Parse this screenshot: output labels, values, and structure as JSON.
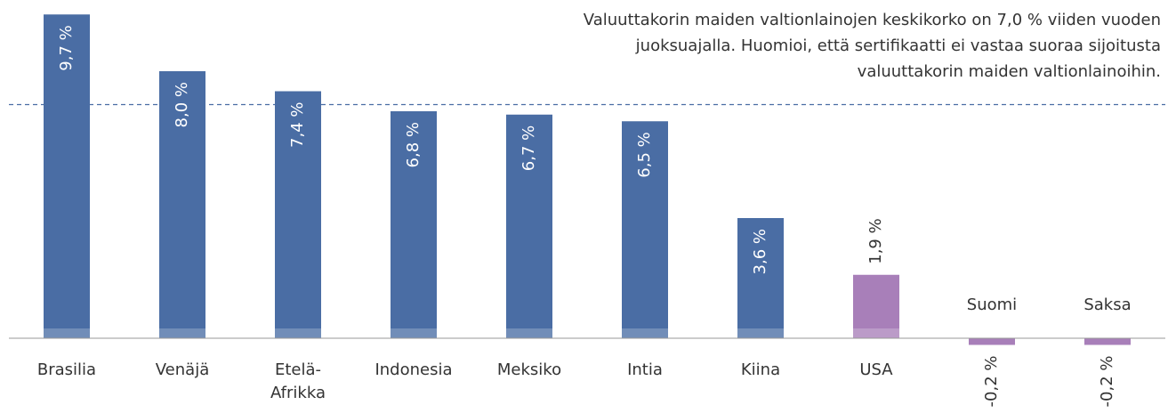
{
  "chart_data": {
    "type": "bar",
    "annotation": "Valuuttakorin maiden valtionlainojen keskikorko on 7,0 % viiden vuoden juoksuajalla. Huomioi, että sertifikaatti ei vastaa suoraa sijoitusta valuuttakorin maiden valtionlainoihin.",
    "reference_line": 7.0,
    "categories": [
      "Brasilia",
      "Venäjä",
      "Etelä-Afrikka",
      "Indonesia",
      "Meksiko",
      "Intia",
      "Kiina",
      "USA",
      "Suomi",
      "Saksa"
    ],
    "values": [
      9.7,
      8.0,
      7.4,
      6.8,
      6.7,
      6.5,
      3.6,
      1.9,
      -0.2,
      -0.2
    ],
    "value_labels": [
      "9,7 %",
      "8,0 %",
      "7,4 %",
      "6,8 %",
      "6,7 %",
      "6,5 %",
      "3,6 %",
      "1,9 %",
      "-0,2 %",
      "-0,2 %"
    ],
    "colors": [
      "#4a6da4",
      "#4a6da4",
      "#4a6da4",
      "#4a6da4",
      "#4a6da4",
      "#4a6da4",
      "#4a6da4",
      "#a87fb9",
      "#a87fb9",
      "#a87fb9"
    ],
    "ylim": [
      -2,
      10
    ]
  }
}
